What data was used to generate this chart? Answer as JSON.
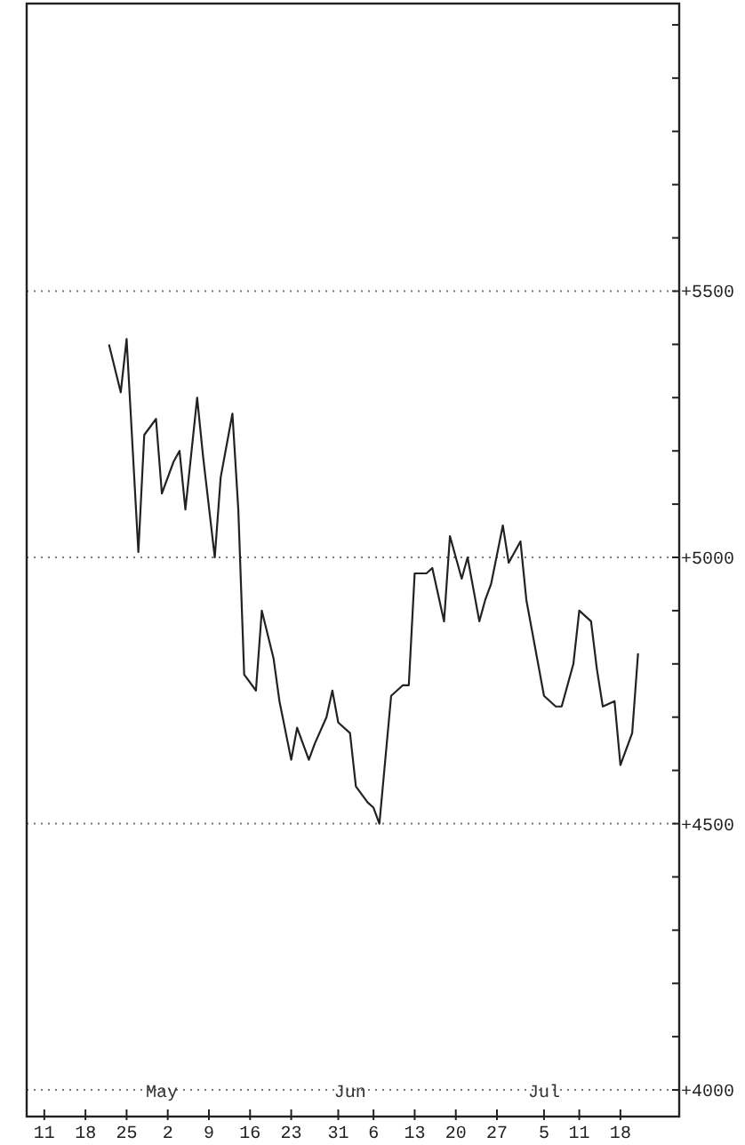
{
  "chart_data": {
    "type": "line",
    "x": [
      "--04-22",
      "--04-24",
      "--04-25",
      "--04-27",
      "--04-28",
      "--04-30",
      "--05-01",
      "--05-03",
      "--05-04",
      "--05-05",
      "--05-07",
      "--05-08",
      "--05-10",
      "--05-11",
      "--05-13",
      "--05-14",
      "--05-15",
      "--05-17",
      "--05-18",
      "--05-20",
      "--05-21",
      "--05-23",
      "--05-24",
      "--05-26",
      "--05-27",
      "--05-29",
      "--05-30",
      "--05-31",
      "--06-02",
      "--06-03",
      "--06-05",
      "--06-06",
      "--06-07",
      "--06-09",
      "--06-11",
      "--06-12",
      "--06-13",
      "--06-15",
      "--06-16",
      "--06-18",
      "--06-19",
      "--06-21",
      "--06-22",
      "--06-24",
      "--06-25",
      "--06-26",
      "--06-28",
      "--06-29",
      "--07-01",
      "--07-02",
      "--07-04",
      "--07-05",
      "--07-07",
      "--07-08",
      "--07-10",
      "--07-11",
      "--07-13",
      "--07-14",
      "--07-15",
      "--07-17",
      "--07-18",
      "--07-20",
      "--07-21"
    ],
    "series": [
      {
        "color": "#222222",
        "values": [
          5400,
          5310,
          5410,
          5010,
          5230,
          5260,
          5120,
          5180,
          5200,
          5090,
          5300,
          5190,
          5000,
          5150,
          5270,
          5090,
          4780,
          4750,
          4900,
          4810,
          4730,
          4620,
          4680,
          4620,
          4650,
          4700,
          4750,
          4690,
          4670,
          4570,
          4540,
          4530,
          4500,
          4740,
          4760,
          4760,
          4970,
          4970,
          4980,
          4880,
          5040,
          4960,
          5000,
          4880,
          4920,
          4950,
          5060,
          4990,
          5030,
          4920,
          4800,
          4740,
          4720,
          4720,
          4800,
          4900,
          4880,
          4790,
          4720,
          4730,
          4610,
          4670,
          4820
        ]
      }
    ],
    "xlim": [
      "--04-08",
      "--07-28"
    ],
    "xticks": [
      {
        "value": "--04-11",
        "label": "11"
      },
      {
        "value": "--04-18",
        "label": "18"
      },
      {
        "value": "--04-25",
        "label": "25"
      },
      {
        "value": "--05-02",
        "label": "2"
      },
      {
        "value": "--05-09",
        "label": "9"
      },
      {
        "value": "--05-16",
        "label": "16"
      },
      {
        "value": "--05-23",
        "label": "23"
      },
      {
        "value": "--05-31",
        "label": "31"
      },
      {
        "value": "--06-06",
        "label": "6"
      },
      {
        "value": "--06-13",
        "label": "13"
      },
      {
        "value": "--06-20",
        "label": "20"
      },
      {
        "value": "--06-27",
        "label": "27"
      },
      {
        "value": "--07-05",
        "label": "5"
      },
      {
        "value": "--07-11",
        "label": "11"
      },
      {
        "value": "--07-18",
        "label": "18"
      }
    ],
    "x2lim": [
      "--04-08",
      "--07-28"
    ],
    "x2ticks": [
      {
        "value": "--05-01",
        "label": "May"
      },
      {
        "value": "--06-02",
        "label": "Jun"
      },
      {
        "value": "--07-05",
        "label": "Jul"
      }
    ],
    "ylim": [
      3950,
      6040
    ],
    "yticks": [
      {
        "value": 4000,
        "label": "+4000"
      },
      {
        "value": 4100,
        "label": null
      },
      {
        "value": 4200,
        "label": null
      },
      {
        "value": 4300,
        "label": null
      },
      {
        "value": 4400,
        "label": null
      },
      {
        "value": 4500,
        "label": "+4500"
      },
      {
        "value": 4600,
        "label": null
      },
      {
        "value": 4700,
        "label": null
      },
      {
        "value": 4800,
        "label": null
      },
      {
        "value": 4900,
        "label": null
      },
      {
        "value": 5000,
        "label": "+5000"
      },
      {
        "value": 5100,
        "label": null
      },
      {
        "value": 5200,
        "label": null
      },
      {
        "value": 5300,
        "label": null
      },
      {
        "value": 5400,
        "label": null
      },
      {
        "value": 5500,
        "label": "+5500"
      },
      {
        "value": 5600,
        "label": null
      },
      {
        "value": 5700,
        "label": null
      },
      {
        "value": 5800,
        "label": null
      },
      {
        "value": 5900,
        "label": null
      },
      {
        "value": 6000,
        "label": null
      }
    ],
    "grid": "y",
    "line_style": "solid",
    "marker": "none"
  }
}
